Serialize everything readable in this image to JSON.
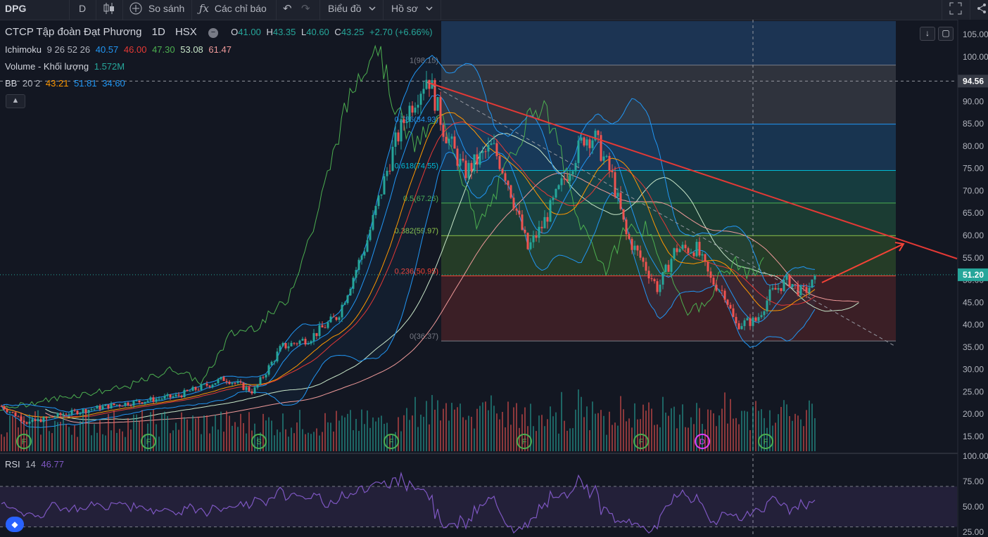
{
  "toolbar": {
    "symbol": "DPG",
    "interval": "D",
    "compare_label": "So sánh",
    "indicators_label": "Các chỉ báo",
    "chart_type_label": "Biểu đồ",
    "profile_label": "Hồ sơ"
  },
  "legend": {
    "title": "CTCP Tập đoàn Đạt Phương",
    "timeframe": "1D",
    "exchange": "HSX",
    "open_label": "O",
    "open": "41.00",
    "high_label": "H",
    "high": "43.35",
    "low_label": "L",
    "low": "40.60",
    "close_label": "C",
    "close": "43.25",
    "change": "+2.70 (+6.66%)",
    "ichimoku_label": "Ichimoku",
    "ichimoku_params": "9 26 52 26",
    "ichimoku_values": [
      "40.57",
      "46.00",
      "47.30",
      "53.08",
      "61.47"
    ],
    "volume_label": "Volume - Khối lượng",
    "volume_value": "1.572M",
    "bb_label": "BB",
    "bb_params": "20 2",
    "bb_values": [
      "43.21",
      "51.81",
      "34.60"
    ],
    "rsi_label": "RSI",
    "rsi_params": "14",
    "rsi_value": "46.77"
  },
  "colors": {
    "background": "#131722",
    "up": "#26a69a",
    "down": "#ef5350",
    "ichimoku": [
      "#2196f3",
      "#e53935",
      "#4caf50",
      "#c8e6c9",
      "#ef9a9a"
    ],
    "bb": [
      "#ff9800",
      "#2196f3",
      "#2196f3"
    ],
    "rsi": "#7e57c2",
    "trendline": "#e53935",
    "price_tag": "#26a69a"
  },
  "icons": [
    "candles-icon",
    "plus-circle-icon",
    "fx-icon",
    "undo-icon",
    "redo-icon",
    "chevron-down-icon",
    "fullscreen-icon",
    "share-icon",
    "down-arrow-icon",
    "expand-icon",
    "chevron-up-icon",
    "logo-icon"
  ],
  "chart_data": {
    "type": "candlestick",
    "symbol": "DPG",
    "y_axis": {
      "range": [
        12,
        108
      ],
      "ticks": [
        "15.00",
        "20.00",
        "25.00",
        "30.00",
        "35.00",
        "40.00",
        "45.00",
        "50.00",
        "55.00",
        "60.00",
        "65.00",
        "70.00",
        "75.00",
        "80.00",
        "85.00",
        "90.00",
        "95.00",
        "100.00",
        "105.00"
      ]
    },
    "last_price": "51.20",
    "crosshair_price": "94.56",
    "price_path": [
      [
        0,
        22
      ],
      [
        40,
        18
      ],
      [
        90,
        20
      ],
      [
        160,
        22
      ],
      [
        250,
        24
      ],
      [
        320,
        28
      ],
      [
        360,
        25
      ],
      [
        400,
        35
      ],
      [
        440,
        37
      ],
      [
        480,
        42
      ],
      [
        520,
        58
      ],
      [
        560,
        80
      ],
      [
        580,
        88
      ],
      [
        608,
        96
      ],
      [
        630,
        84
      ],
      [
        660,
        74
      ],
      [
        700,
        80
      ],
      [
        720,
        73
      ],
      [
        750,
        57
      ],
      [
        770,
        62
      ],
      [
        800,
        72
      ],
      [
        830,
        82
      ],
      [
        845,
        82
      ],
      [
        870,
        73
      ],
      [
        890,
        60
      ],
      [
        910,
        55
      ],
      [
        935,
        48
      ],
      [
        960,
        57
      ],
      [
        990,
        57
      ],
      [
        1010,
        50
      ],
      [
        1030,
        47
      ],
      [
        1045,
        40
      ],
      [
        1075,
        41
      ],
      [
        1095,
        47
      ],
      [
        1120,
        50
      ],
      [
        1140,
        47
      ],
      [
        1168,
        51.2
      ]
    ],
    "fibonacci": [
      {
        "label": "1(98.15)",
        "level": 98.15,
        "color": "#787b86"
      },
      {
        "label": "0.786(84.93)",
        "level": 84.93,
        "color": "#2196f3"
      },
      {
        "label": "0.618(74.55)",
        "level": 74.55,
        "color": "#00bcd4"
      },
      {
        "label": "0.5(67.26)",
        "level": 67.26,
        "color": "#4caf50"
      },
      {
        "label": "0.382(59.97)",
        "level": 59.97,
        "color": "#8bc34a"
      },
      {
        "label": "0.236(50.95)",
        "level": 50.95,
        "color": "#f44336"
      },
      {
        "label": "0(36.37)",
        "level": 36.37,
        "color": "#787b86"
      }
    ],
    "rsi": {
      "ticks": [
        "25.00",
        "50.00",
        "75.00",
        "100.00"
      ],
      "bands": [
        30,
        70
      ],
      "range": [
        20,
        102
      ]
    },
    "event_markers": [
      "F",
      "F",
      "S",
      "F",
      "F",
      "F",
      "D",
      "F"
    ]
  }
}
